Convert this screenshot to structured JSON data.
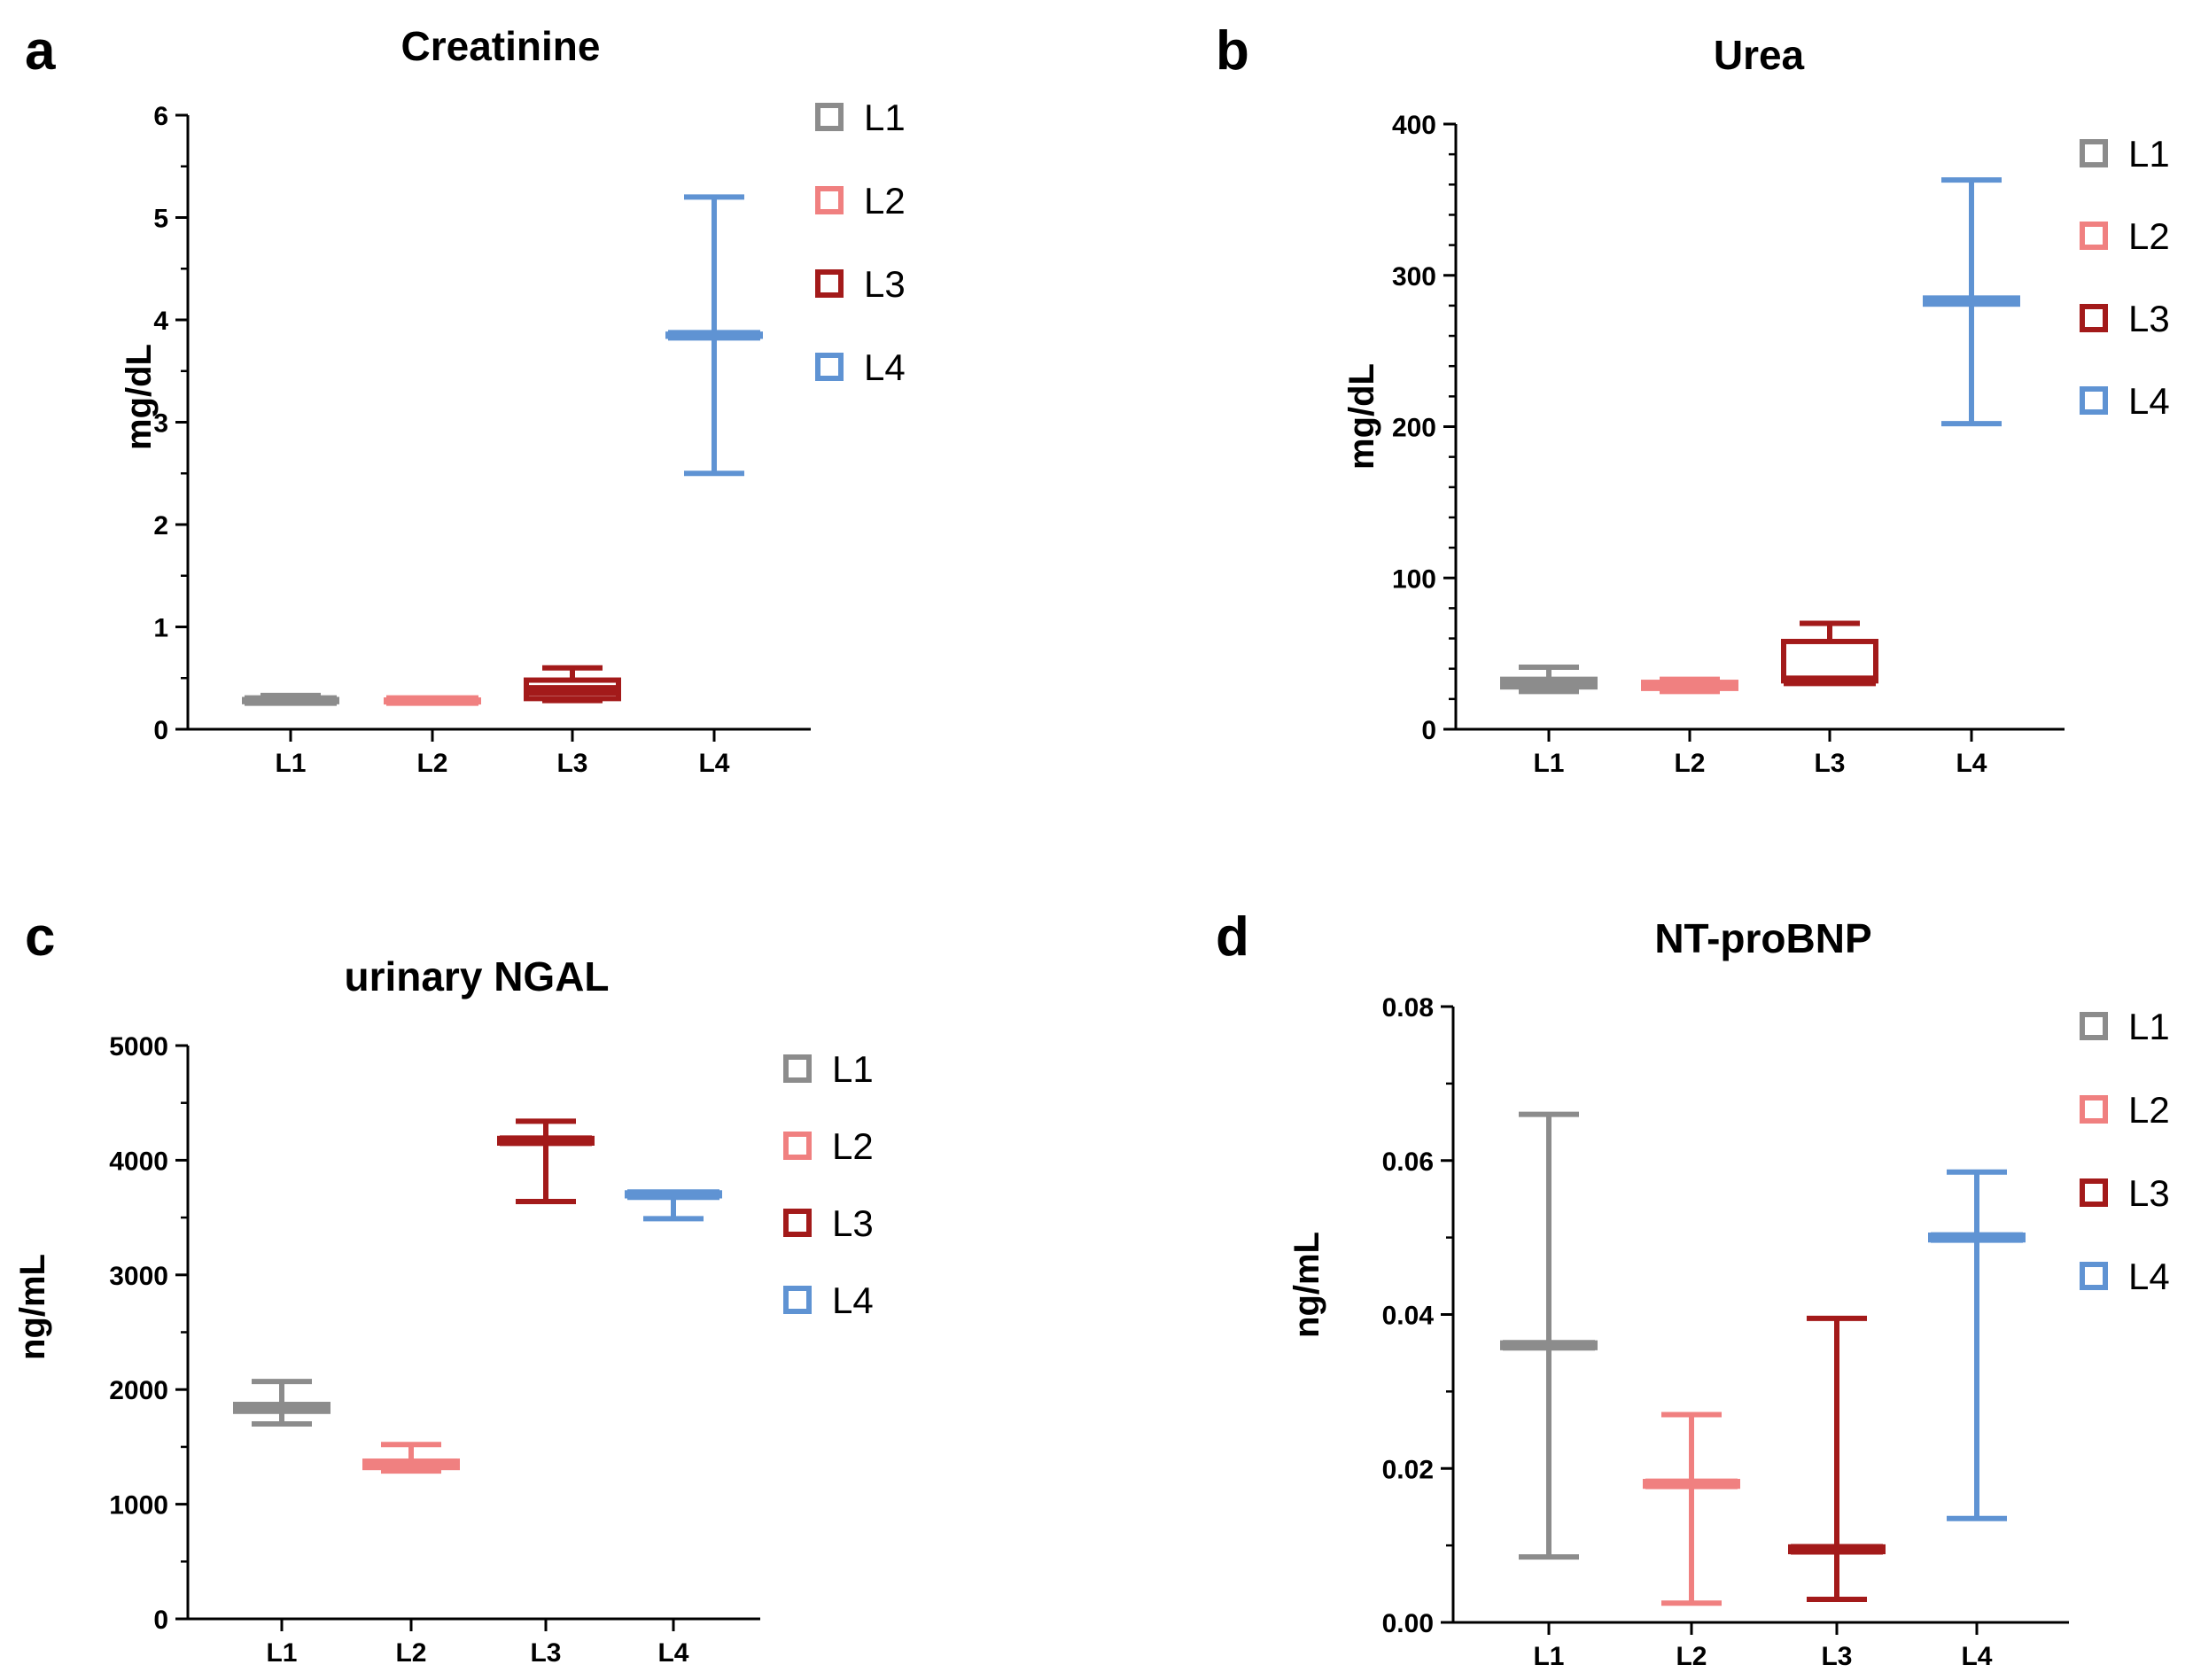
{
  "chart_data": [
    {
      "type": "box",
      "panel": "a",
      "title": "Creatinine",
      "xlabel": "",
      "ylabel": "mg/dL",
      "ylim": [
        0,
        6
      ],
      "yticks": [
        0,
        1,
        2,
        3,
        4,
        5,
        6
      ],
      "ytick_labels": [
        "0",
        "1",
        "2",
        "3",
        "4",
        "5",
        "6"
      ],
      "minor_ticks_per_major": 1,
      "categories": [
        "L1",
        "L2",
        "L3",
        "L4"
      ],
      "colors": [
        "#8c8c8c",
        "#f08080",
        "#a31a1a",
        "#5f93d3"
      ],
      "series": [
        {
          "name": "L1",
          "min": 0.26,
          "q1": 0.27,
          "median": 0.28,
          "q3": 0.29,
          "max": 0.33
        },
        {
          "name": "L2",
          "min": 0.27,
          "q1": 0.275,
          "median": 0.28,
          "q3": 0.285,
          "max": 0.29
        },
        {
          "name": "L3",
          "min": 0.28,
          "q1": 0.3,
          "median": 0.38,
          "q3": 0.48,
          "max": 0.6
        },
        {
          "name": "L4",
          "min": 2.5,
          "q1": 3.84,
          "median": 3.85,
          "q3": 3.86,
          "max": 5.2
        }
      ],
      "legend": [
        "L1",
        "L2",
        "L3",
        "L4"
      ],
      "legend_position": "right"
    },
    {
      "type": "box",
      "panel": "b",
      "title": "Urea",
      "xlabel": "",
      "ylabel": "mg/dL",
      "ylim": [
        0,
        400
      ],
      "yticks": [
        0,
        100,
        200,
        300,
        400
      ],
      "ytick_labels": [
        "0",
        "100",
        "200",
        "300",
        "400"
      ],
      "minor_ticks_per_major": 4,
      "categories": [
        "L1",
        "L2",
        "L3",
        "L4"
      ],
      "colors": [
        "#8c8c8c",
        "#f08080",
        "#a31a1a",
        "#5f93d3"
      ],
      "series": [
        {
          "name": "L1",
          "min": 25,
          "q1": 28,
          "median": 31,
          "q3": 33,
          "max": 41
        },
        {
          "name": "L2",
          "min": 25,
          "q1": 27,
          "median": 29,
          "q3": 31,
          "max": 33
        },
        {
          "name": "L3",
          "min": 32,
          "q1": 32,
          "median": 32,
          "q3": 58,
          "max": 70
        },
        {
          "name": "L4",
          "min": 202,
          "q1": 281,
          "median": 283,
          "q3": 285,
          "max": 363
        }
      ],
      "legend": [
        "L1",
        "L2",
        "L3",
        "L4"
      ],
      "legend_position": "right"
    },
    {
      "type": "box",
      "panel": "c",
      "title": "urinary NGAL",
      "xlabel": "",
      "ylabel": "ng/mL",
      "ylim": [
        0,
        5000
      ],
      "yticks": [
        0,
        1000,
        2000,
        3000,
        4000,
        5000
      ],
      "ytick_labels": [
        "0",
        "1000",
        "2000",
        "3000",
        "4000",
        "5000"
      ],
      "minor_ticks_per_major": 1,
      "categories": [
        "L1",
        "L2",
        "L3",
        "L4"
      ],
      "colors": [
        "#8c8c8c",
        "#f08080",
        "#a31a1a",
        "#5f93d3"
      ],
      "series": [
        {
          "name": "L1",
          "min": 1700,
          "q1": 1810,
          "median": 1840,
          "q3": 1870,
          "max": 2070
        },
        {
          "name": "L2",
          "min": 1290,
          "q1": 1320,
          "median": 1350,
          "q3": 1375,
          "max": 1520
        },
        {
          "name": "L3",
          "min": 3640,
          "q1": 4150,
          "median": 4170,
          "q3": 4190,
          "max": 4340
        },
        {
          "name": "L4",
          "min": 3490,
          "q1": 3690,
          "median": 3700,
          "q3": 3715,
          "max": 3715
        }
      ],
      "legend": [
        "L1",
        "L2",
        "L3",
        "L4"
      ],
      "legend_position": "right"
    },
    {
      "type": "box",
      "panel": "d",
      "title": "NT-proBNP",
      "xlabel": "",
      "ylabel": "ng/mL",
      "ylim": [
        0,
        0.08
      ],
      "yticks": [
        0,
        0.02,
        0.04,
        0.06,
        0.08
      ],
      "ytick_labels": [
        "0.00",
        "0.02",
        "0.04",
        "0.06",
        "0.08"
      ],
      "minor_ticks_per_major": 1,
      "categories": [
        "L1",
        "L2",
        "L3",
        "L4"
      ],
      "colors": [
        "#8c8c8c",
        "#f08080",
        "#a31a1a",
        "#5f93d3"
      ],
      "series": [
        {
          "name": "L1",
          "min": 0.0085,
          "q1": 0.0357,
          "median": 0.036,
          "q3": 0.0363,
          "max": 0.066
        },
        {
          "name": "L2",
          "min": 0.0025,
          "q1": 0.0177,
          "median": 0.018,
          "q3": 0.0183,
          "max": 0.027
        },
        {
          "name": "L3",
          "min": 0.003,
          "q1": 0.0092,
          "median": 0.0095,
          "q3": 0.0098,
          "max": 0.0395
        },
        {
          "name": "L4",
          "min": 0.0135,
          "q1": 0.0497,
          "median": 0.05,
          "q3": 0.0503,
          "max": 0.0585
        }
      ],
      "legend": [
        "L1",
        "L2",
        "L3",
        "L4"
      ],
      "legend_position": "right"
    }
  ]
}
